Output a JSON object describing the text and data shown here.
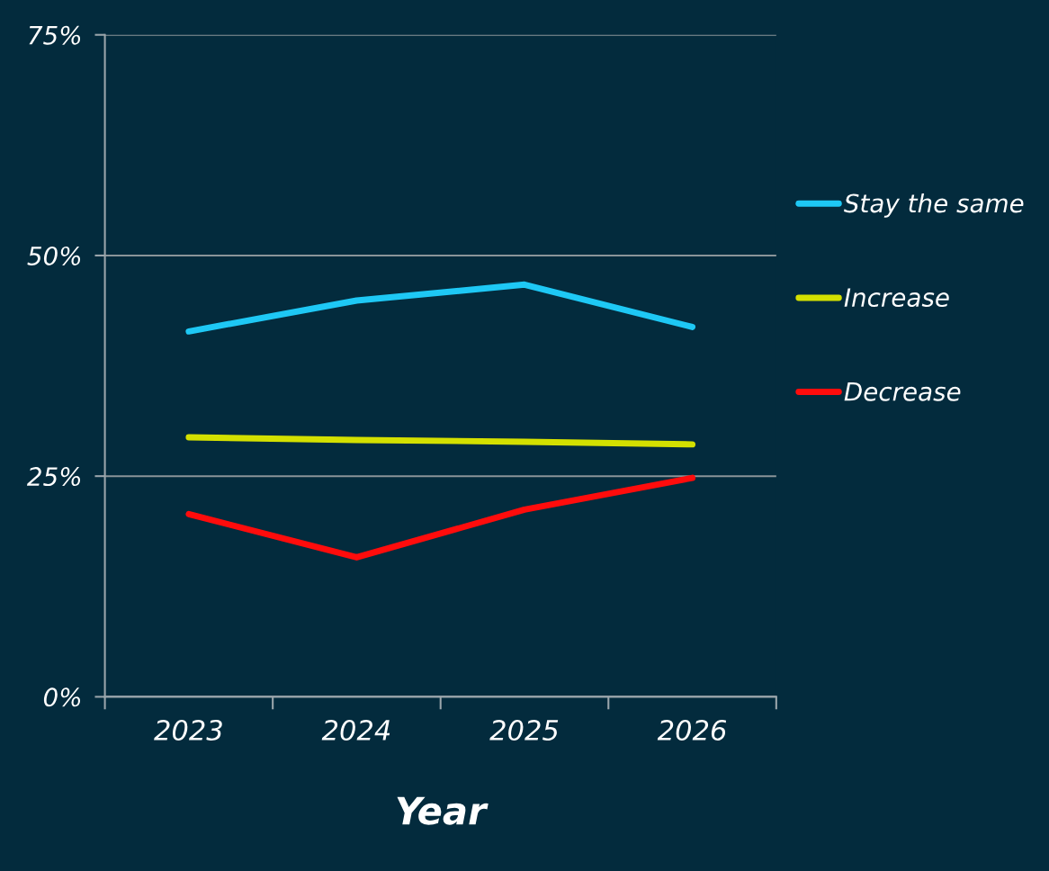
{
  "chart_data": {
    "type": "line",
    "xlabel": "Year",
    "categories": [
      "2023",
      "2024",
      "2025",
      "2026"
    ],
    "series": [
      {
        "name": "Stay the same",
        "color": "#1ec8f5",
        "values": [
          41.4,
          44.9,
          46.7,
          41.9
        ]
      },
      {
        "name": "Increase",
        "color": "#d4e000",
        "values": [
          29.4,
          29.1,
          28.9,
          28.6
        ]
      },
      {
        "name": "Decrease",
        "color": "#ff0c0c",
        "values": [
          20.7,
          15.8,
          21.2,
          24.8
        ]
      }
    ],
    "ylim": [
      0,
      75
    ],
    "yticks": [
      {
        "value": 0,
        "label": "0%"
      },
      {
        "value": 25,
        "label": "25%"
      },
      {
        "value": 50,
        "label": "50%"
      },
      {
        "value": 75,
        "label": "75%"
      }
    ],
    "grid": "y",
    "legend": "right",
    "marker": "none",
    "line_style": "solid"
  }
}
